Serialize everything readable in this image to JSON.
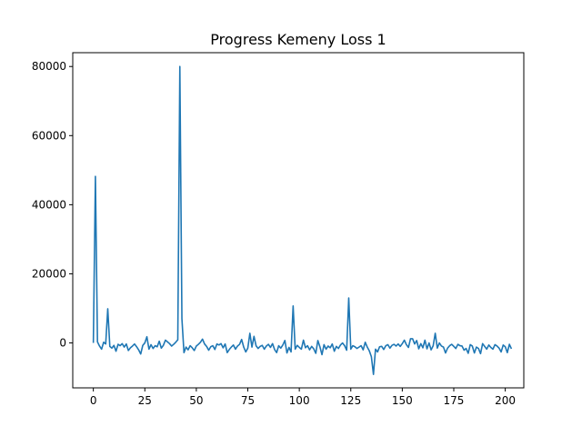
{
  "chart_data": {
    "type": "line",
    "title": "Progress Kemeny Loss 1",
    "xlabel": "",
    "ylabel": "",
    "xlim": [
      -10,
      209
    ],
    "ylim": [
      -13000,
      84000
    ],
    "xticks": [
      0,
      25,
      50,
      75,
      100,
      125,
      150,
      175,
      200
    ],
    "yticks": [
      0,
      20000,
      40000,
      60000,
      80000
    ],
    "xtick_labels": [
      "0",
      "25",
      "50",
      "75",
      "100",
      "125",
      "150",
      "175",
      "200"
    ],
    "ytick_labels": [
      "0",
      "20000",
      "40000",
      "60000",
      "80000"
    ],
    "grid": false,
    "legend": "none",
    "line_color": "#1f77b4",
    "series": [
      {
        "values": [
          0,
          48200,
          300,
          -900,
          -1800,
          200,
          -300,
          9900,
          -1000,
          -1500,
          -700,
          -2400,
          -400,
          -800,
          -200,
          -1200,
          -300,
          -2200,
          -1400,
          -900,
          -300,
          -1100,
          -2000,
          -3200,
          -700,
          0,
          1800,
          -1800,
          -500,
          -1600,
          -800,
          -1100,
          500,
          -1500,
          -700,
          800,
          300,
          -200,
          -900,
          -400,
          200,
          900,
          80000,
          7000,
          -2800,
          -1200,
          -2000,
          -800,
          -1400,
          -2200,
          -900,
          -400,
          200,
          1100,
          -300,
          -1000,
          -2100,
          -1100,
          -800,
          -1900,
          -300,
          -600,
          -200,
          -1400,
          -300,
          -2800,
          -1900,
          -1200,
          -600,
          -1800,
          -900,
          -400,
          1000,
          -1200,
          -2600,
          -1500,
          2800,
          -1200,
          1900,
          -800,
          -1600,
          -1000,
          -700,
          -1800,
          -900,
          -400,
          -1300,
          -200,
          -1900,
          -2800,
          -800,
          -1500,
          -600,
          700,
          -2900,
          -1300,
          -2600,
          10700,
          -1800,
          -700,
          -1300,
          -1800,
          800,
          -1400,
          -800,
          -2000,
          -1000,
          -1700,
          -3000,
          700,
          -1100,
          -3400,
          -500,
          -1800,
          -900,
          -1400,
          -300,
          -2400,
          -1000,
          -1600,
          -600,
          0,
          -800,
          -2100,
          13000,
          -1800,
          -800,
          -1100,
          -1600,
          -1200,
          -800,
          -2000,
          200,
          -1200,
          -2300,
          -4000,
          -9100,
          -1800,
          -2600,
          -1100,
          -1000,
          -1900,
          -800,
          -500,
          -1500,
          -700,
          -400,
          -900,
          -300,
          -1000,
          -200,
          800,
          -500,
          -1300,
          1200,
          1200,
          -300,
          700,
          -1700,
          -200,
          -1400,
          800,
          -1700,
          0,
          -2000,
          -800,
          2800,
          -1500,
          0,
          -900,
          -1200,
          -2900,
          -1500,
          -800,
          -400,
          -1000,
          -1600,
          -400,
          -800,
          -900,
          -2100,
          -1600,
          -3000,
          -500,
          -900,
          -2900,
          -1200,
          -1600,
          -3100,
          -200,
          -1000,
          -1800,
          -600,
          -1300,
          -1800,
          -500,
          -900,
          -1500,
          -2600,
          -600,
          -1100,
          -2800,
          -400,
          -1700
        ]
      }
    ]
  }
}
